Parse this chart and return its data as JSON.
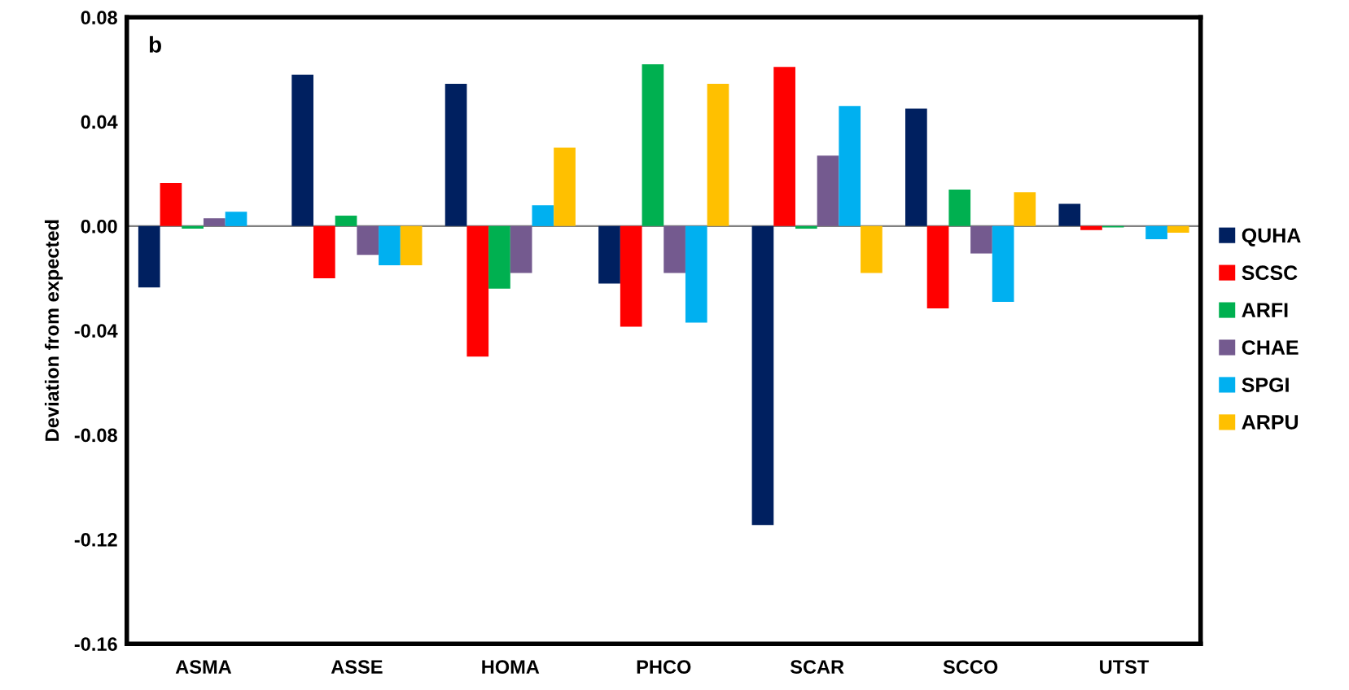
{
  "chart_data": {
    "type": "bar",
    "ylabel": "Deviation from expected",
    "annotations": [
      "b"
    ],
    "categories": [
      "ASMA",
      "ASSE",
      "HOMA",
      "PHCO",
      "SCAR",
      "SCCO",
      "UTST"
    ],
    "ylim": [
      -0.16,
      0.08
    ],
    "yticks": [
      {
        "value": -0.16,
        "label": "-0.16"
      },
      {
        "value": -0.12,
        "label": "-0.12"
      },
      {
        "value": -0.08,
        "label": "-0.08"
      },
      {
        "value": -0.04,
        "label": "-0.04"
      },
      {
        "value": 0,
        "label": "0.00"
      },
      {
        "value": 0.04,
        "label": "0.04"
      },
      {
        "value": 0.08,
        "label": "0.08"
      }
    ],
    "ref_lines": [
      {
        "axis": "y",
        "value": 0,
        "color": "#808080"
      }
    ],
    "legend": "right",
    "grid": false,
    "series": [
      {
        "name": "QUHA",
        "color": "#002060",
        "values": [
          -0.0235,
          0.058,
          0.0545,
          -0.022,
          -0.1145,
          0.045,
          0.0085
        ]
      },
      {
        "name": "SCSC",
        "color": "#ff0000",
        "values": [
          0.0165,
          -0.02,
          -0.05,
          -0.0385,
          0.061,
          -0.0315,
          -0.0015
        ]
      },
      {
        "name": "ARFI",
        "color": "#00b050",
        "values": [
          -0.001,
          0.004,
          -0.024,
          0.062,
          -0.001,
          0.014,
          -0.0005
        ]
      },
      {
        "name": "CHAE",
        "color": "#745a8f",
        "values": [
          0.003,
          -0.011,
          -0.018,
          -0.018,
          0.027,
          -0.0105,
          0
        ]
      },
      {
        "name": "SPGI",
        "color": "#00b0f0",
        "values": [
          0.0055,
          -0.015,
          0.008,
          -0.037,
          0.046,
          -0.029,
          -0.005
        ]
      },
      {
        "name": "ARPU",
        "color": "#ffc000",
        "values": [
          0,
          -0.015,
          0.03,
          0.0545,
          -0.018,
          0.013,
          -0.0025
        ]
      }
    ]
  }
}
